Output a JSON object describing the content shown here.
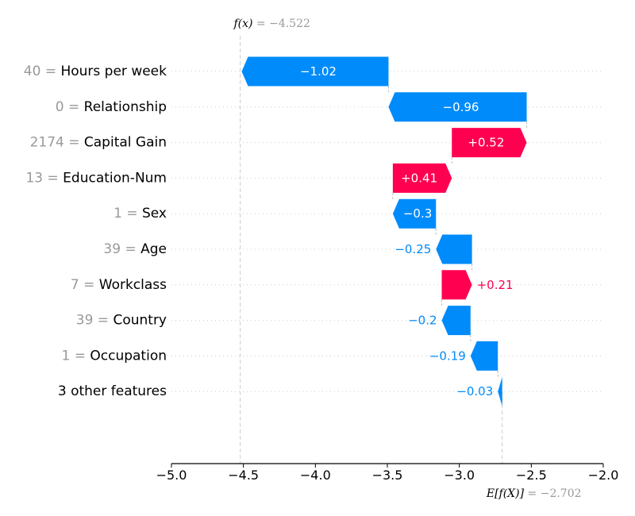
{
  "chart_data": {
    "type": "waterfall",
    "fx_label": "f(x)",
    "fx_value_text": " = −4.522",
    "fx_value": -4.522,
    "base_label": "E[f(X)]",
    "base_value_text": " = −2.702",
    "base_value": -2.702,
    "xlim": [
      -5.0,
      -2.0
    ],
    "xticks": [
      {
        "value": -5.0,
        "label": "−5.0"
      },
      {
        "value": -4.5,
        "label": "−4.5"
      },
      {
        "value": -4.0,
        "label": "−4.0"
      },
      {
        "value": -3.5,
        "label": "−3.5"
      },
      {
        "value": -3.0,
        "label": "−3.0"
      },
      {
        "value": -2.5,
        "label": "−2.5"
      },
      {
        "value": -2.0,
        "label": "−2.0"
      }
    ],
    "features": [
      {
        "value": "40",
        "name": "Hours per week",
        "contribution": -1.02,
        "label": "−1.02"
      },
      {
        "value": "0",
        "name": "Relationship",
        "contribution": -0.96,
        "label": "−0.96"
      },
      {
        "value": "2174",
        "name": "Capital Gain",
        "contribution": 0.52,
        "label": "+0.52"
      },
      {
        "value": "13",
        "name": "Education-Num",
        "contribution": 0.41,
        "label": "+0.41"
      },
      {
        "value": "1",
        "name": "Sex",
        "contribution": -0.3,
        "label": "−0.3"
      },
      {
        "value": "39",
        "name": "Age",
        "contribution": -0.25,
        "label": "−0.25"
      },
      {
        "value": "7",
        "name": "Workclass",
        "contribution": 0.21,
        "label": "+0.21"
      },
      {
        "value": "39",
        "name": "Country",
        "contribution": -0.2,
        "label": "−0.2"
      },
      {
        "value": "1",
        "name": "Occupation",
        "contribution": -0.19,
        "label": "−0.19"
      },
      {
        "value": "",
        "name": "3 other features",
        "contribution": -0.03,
        "label": "−0.03"
      }
    ],
    "colors": {
      "positive": "#ff0051",
      "negative": "#008bfb",
      "text_inside": "#ffffff"
    }
  }
}
